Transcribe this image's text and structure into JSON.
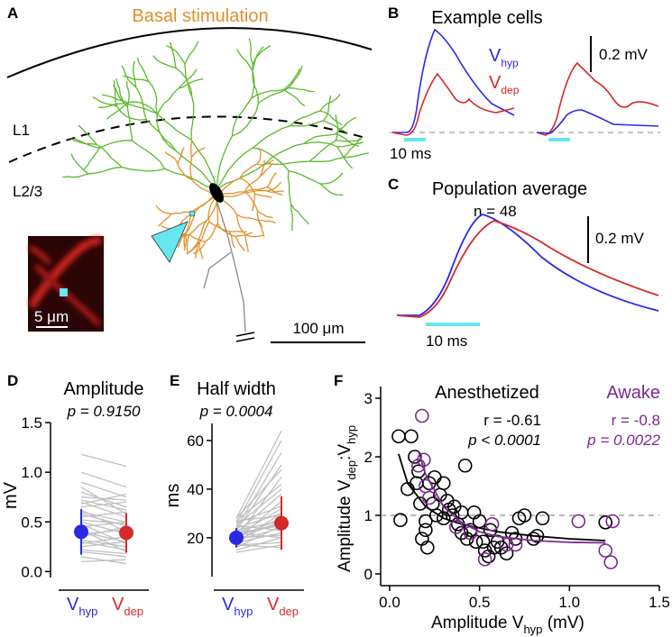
{
  "panels": {
    "A": {
      "label": "A",
      "title": "Basal stimulation",
      "layers": [
        "L1",
        "L2/3"
      ],
      "inset_scale": "5 μm",
      "scale": "100 μm"
    },
    "B": {
      "label": "B",
      "title": "Example cells",
      "legend": [
        [
          "V",
          "hyp"
        ],
        [
          "V",
          "dep"
        ]
      ],
      "scale_y": "0.2 mV",
      "scale_x": "10 ms"
    },
    "C": {
      "label": "C",
      "title": "Population average",
      "n": "n = 48",
      "scale_y": "0.2 mV",
      "scale_x": "10 ms"
    }
  },
  "chart_data": [
    {
      "type": "paired",
      "panel_label": "D",
      "title": "Amplitude",
      "subtitle": "p = 0.9150",
      "ylabel": "mV",
      "categories": [
        [
          "V",
          "hyp"
        ],
        [
          "V",
          "dep"
        ]
      ],
      "colors": [
        "#2a2ae6",
        "#d42a2a"
      ],
      "ylim": [
        -0.06,
        1.5
      ],
      "yticks": [
        {
          "value": 0,
          "label": "0.0"
        },
        0.5,
        {
          "value": 1,
          "label": "1.0"
        },
        1.5
      ],
      "means": [
        0.4,
        0.39
      ],
      "errors": [
        0.23,
        0.2
      ],
      "pair_color": "#c0c0c0",
      "pairs": [
        [
          0.2,
          0.15
        ],
        [
          0.25,
          0.3
        ],
        [
          0.3,
          0.22
        ],
        [
          0.35,
          0.45
        ],
        [
          0.4,
          0.3
        ],
        [
          0.45,
          0.5
        ],
        [
          0.5,
          0.38
        ],
        [
          0.55,
          0.6
        ],
        [
          0.6,
          0.5
        ],
        [
          0.65,
          0.7
        ],
        [
          0.7,
          0.55
        ],
        [
          0.75,
          0.72
        ],
        [
          0.8,
          0.65
        ],
        [
          0.15,
          0.08
        ],
        [
          0.1,
          0.12
        ],
        [
          0.28,
          0.35
        ],
        [
          0.38,
          0.42
        ],
        [
          0.48,
          0.28
        ],
        [
          0.58,
          0.46
        ],
        [
          0.68,
          0.78
        ],
        [
          0.9,
          0.75
        ],
        [
          1.0,
          0.85
        ],
        [
          1.18,
          1.06
        ],
        [
          0.22,
          0.18
        ],
        [
          0.32,
          0.25
        ],
        [
          0.42,
          0.2
        ],
        [
          0.52,
          0.48
        ],
        [
          0.62,
          0.4
        ],
        [
          0.72,
          0.62
        ],
        [
          0.85,
          0.58
        ]
      ]
    },
    {
      "type": "paired",
      "panel_label": "E",
      "title": "Half width",
      "subtitle": "p = 0.0004",
      "ylabel": "ms",
      "categories": [
        [
          "V",
          "hyp"
        ],
        [
          "V",
          "dep"
        ]
      ],
      "colors": [
        "#2a2ae6",
        "#d42a2a"
      ],
      "ylim": [
        4,
        67
      ],
      "yticks": [
        20,
        40,
        60
      ],
      "means": [
        20,
        26
      ],
      "errors": [
        4,
        11
      ],
      "pair_color": "#c0c0c0",
      "pairs": [
        [
          15,
          20
        ],
        [
          16,
          25
        ],
        [
          17,
          18
        ],
        [
          18,
          30
        ],
        [
          18,
          22
        ],
        [
          19,
          35
        ],
        [
          19,
          24
        ],
        [
          20,
          28
        ],
        [
          20,
          45
        ],
        [
          21,
          26
        ],
        [
          21,
          32
        ],
        [
          22,
          38
        ],
        [
          22,
          20
        ],
        [
          23,
          50
        ],
        [
          23,
          27
        ],
        [
          24,
          30
        ],
        [
          24,
          55
        ],
        [
          25,
          40
        ],
        [
          25,
          23
        ],
        [
          26,
          33
        ],
        [
          26,
          60
        ],
        [
          27,
          42
        ],
        [
          27,
          29
        ],
        [
          28,
          48
        ],
        [
          28,
          64
        ],
        [
          17,
          16
        ],
        [
          20,
          21
        ],
        [
          22,
          25
        ],
        [
          14,
          17
        ],
        [
          19,
          27
        ]
      ]
    },
    {
      "type": "scatter",
      "panel_label": "F",
      "xlabel": [
        "Amplitude V",
        "hyp",
        " (mV)"
      ],
      "ylabel": [
        "Amplitude V",
        "dep",
        ":V",
        "hyp"
      ],
      "xlim": [
        -0.05,
        1.5
      ],
      "ylim": [
        -0.2,
        3.2
      ],
      "xticks": [
        {
          "value": 0,
          "label": "0.0"
        },
        0.5,
        {
          "value": 1,
          "label": "1.0"
        },
        1.5
      ],
      "yticks": [
        0,
        1,
        2,
        3
      ],
      "reference_line": 1,
      "series": [
        {
          "name": "Anesthetized",
          "color": "#000000",
          "r_label": "r = -0.61",
          "p_label": "p < 0.0001",
          "x": [
            0.05,
            0.06,
            0.1,
            0.12,
            0.14,
            0.15,
            0.16,
            0.17,
            0.18,
            0.2,
            0.2,
            0.21,
            0.22,
            0.24,
            0.25,
            0.26,
            0.28,
            0.3,
            0.3,
            0.32,
            0.33,
            0.35,
            0.36,
            0.38,
            0.4,
            0.4,
            0.42,
            0.43,
            0.45,
            0.47,
            0.48,
            0.5,
            0.52,
            0.53,
            0.55,
            0.56,
            0.58,
            0.6,
            0.62,
            0.65,
            0.68,
            0.7,
            0.72,
            0.75,
            0.8,
            0.82,
            0.85,
            1.2
          ],
          "y": [
            2.35,
            0.92,
            1.45,
            2.35,
            2.0,
            1.55,
            1.75,
            1.2,
            0.6,
            0.9,
            0.75,
            0.45,
            1.55,
            1.2,
            1.65,
            1.0,
            1.35,
            1.55,
            0.95,
            1.25,
            1.1,
            1.0,
            1.15,
            0.85,
            1.05,
            0.7,
            1.85,
            0.6,
            0.75,
            1.05,
            0.55,
            0.9,
            0.55,
            0.4,
            0.3,
            0.75,
            0.45,
            0.55,
            0.45,
            0.35,
            0.7,
            0.6,
            0.95,
            1.0,
            0.6,
            0.65,
            0.95,
            0.88
          ],
          "fit_x": [
            0.05,
            0.1,
            0.2,
            0.3,
            0.4,
            0.6,
            0.8,
            1.0,
            1.2
          ],
          "fit_y": [
            2.05,
            1.55,
            1.15,
            0.95,
            0.85,
            0.72,
            0.65,
            0.6,
            0.57
          ]
        },
        {
          "name": "Awake",
          "color": "#7b2a8e",
          "r_label": "r = -0.8",
          "p_label": "p = 0.0022",
          "x": [
            0.16,
            0.18,
            0.19,
            0.2,
            0.22,
            0.37,
            0.45,
            0.53,
            0.57,
            0.65,
            0.7,
            1.05,
            1.2,
            1.23,
            1.24
          ],
          "y": [
            1.85,
            2.7,
            1.95,
            1.5,
            1.3,
            0.8,
            0.7,
            0.25,
            0.85,
            0.5,
            0.5,
            0.9,
            0.4,
            0.2,
            0.9
          ],
          "fit_x": [
            0.16,
            0.2,
            0.3,
            0.4,
            0.5,
            0.6,
            0.8,
            1.0,
            1.2
          ],
          "fit_y": [
            2.1,
            1.7,
            1.15,
            0.88,
            0.72,
            0.64,
            0.57,
            0.54,
            0.53
          ]
        }
      ]
    }
  ]
}
